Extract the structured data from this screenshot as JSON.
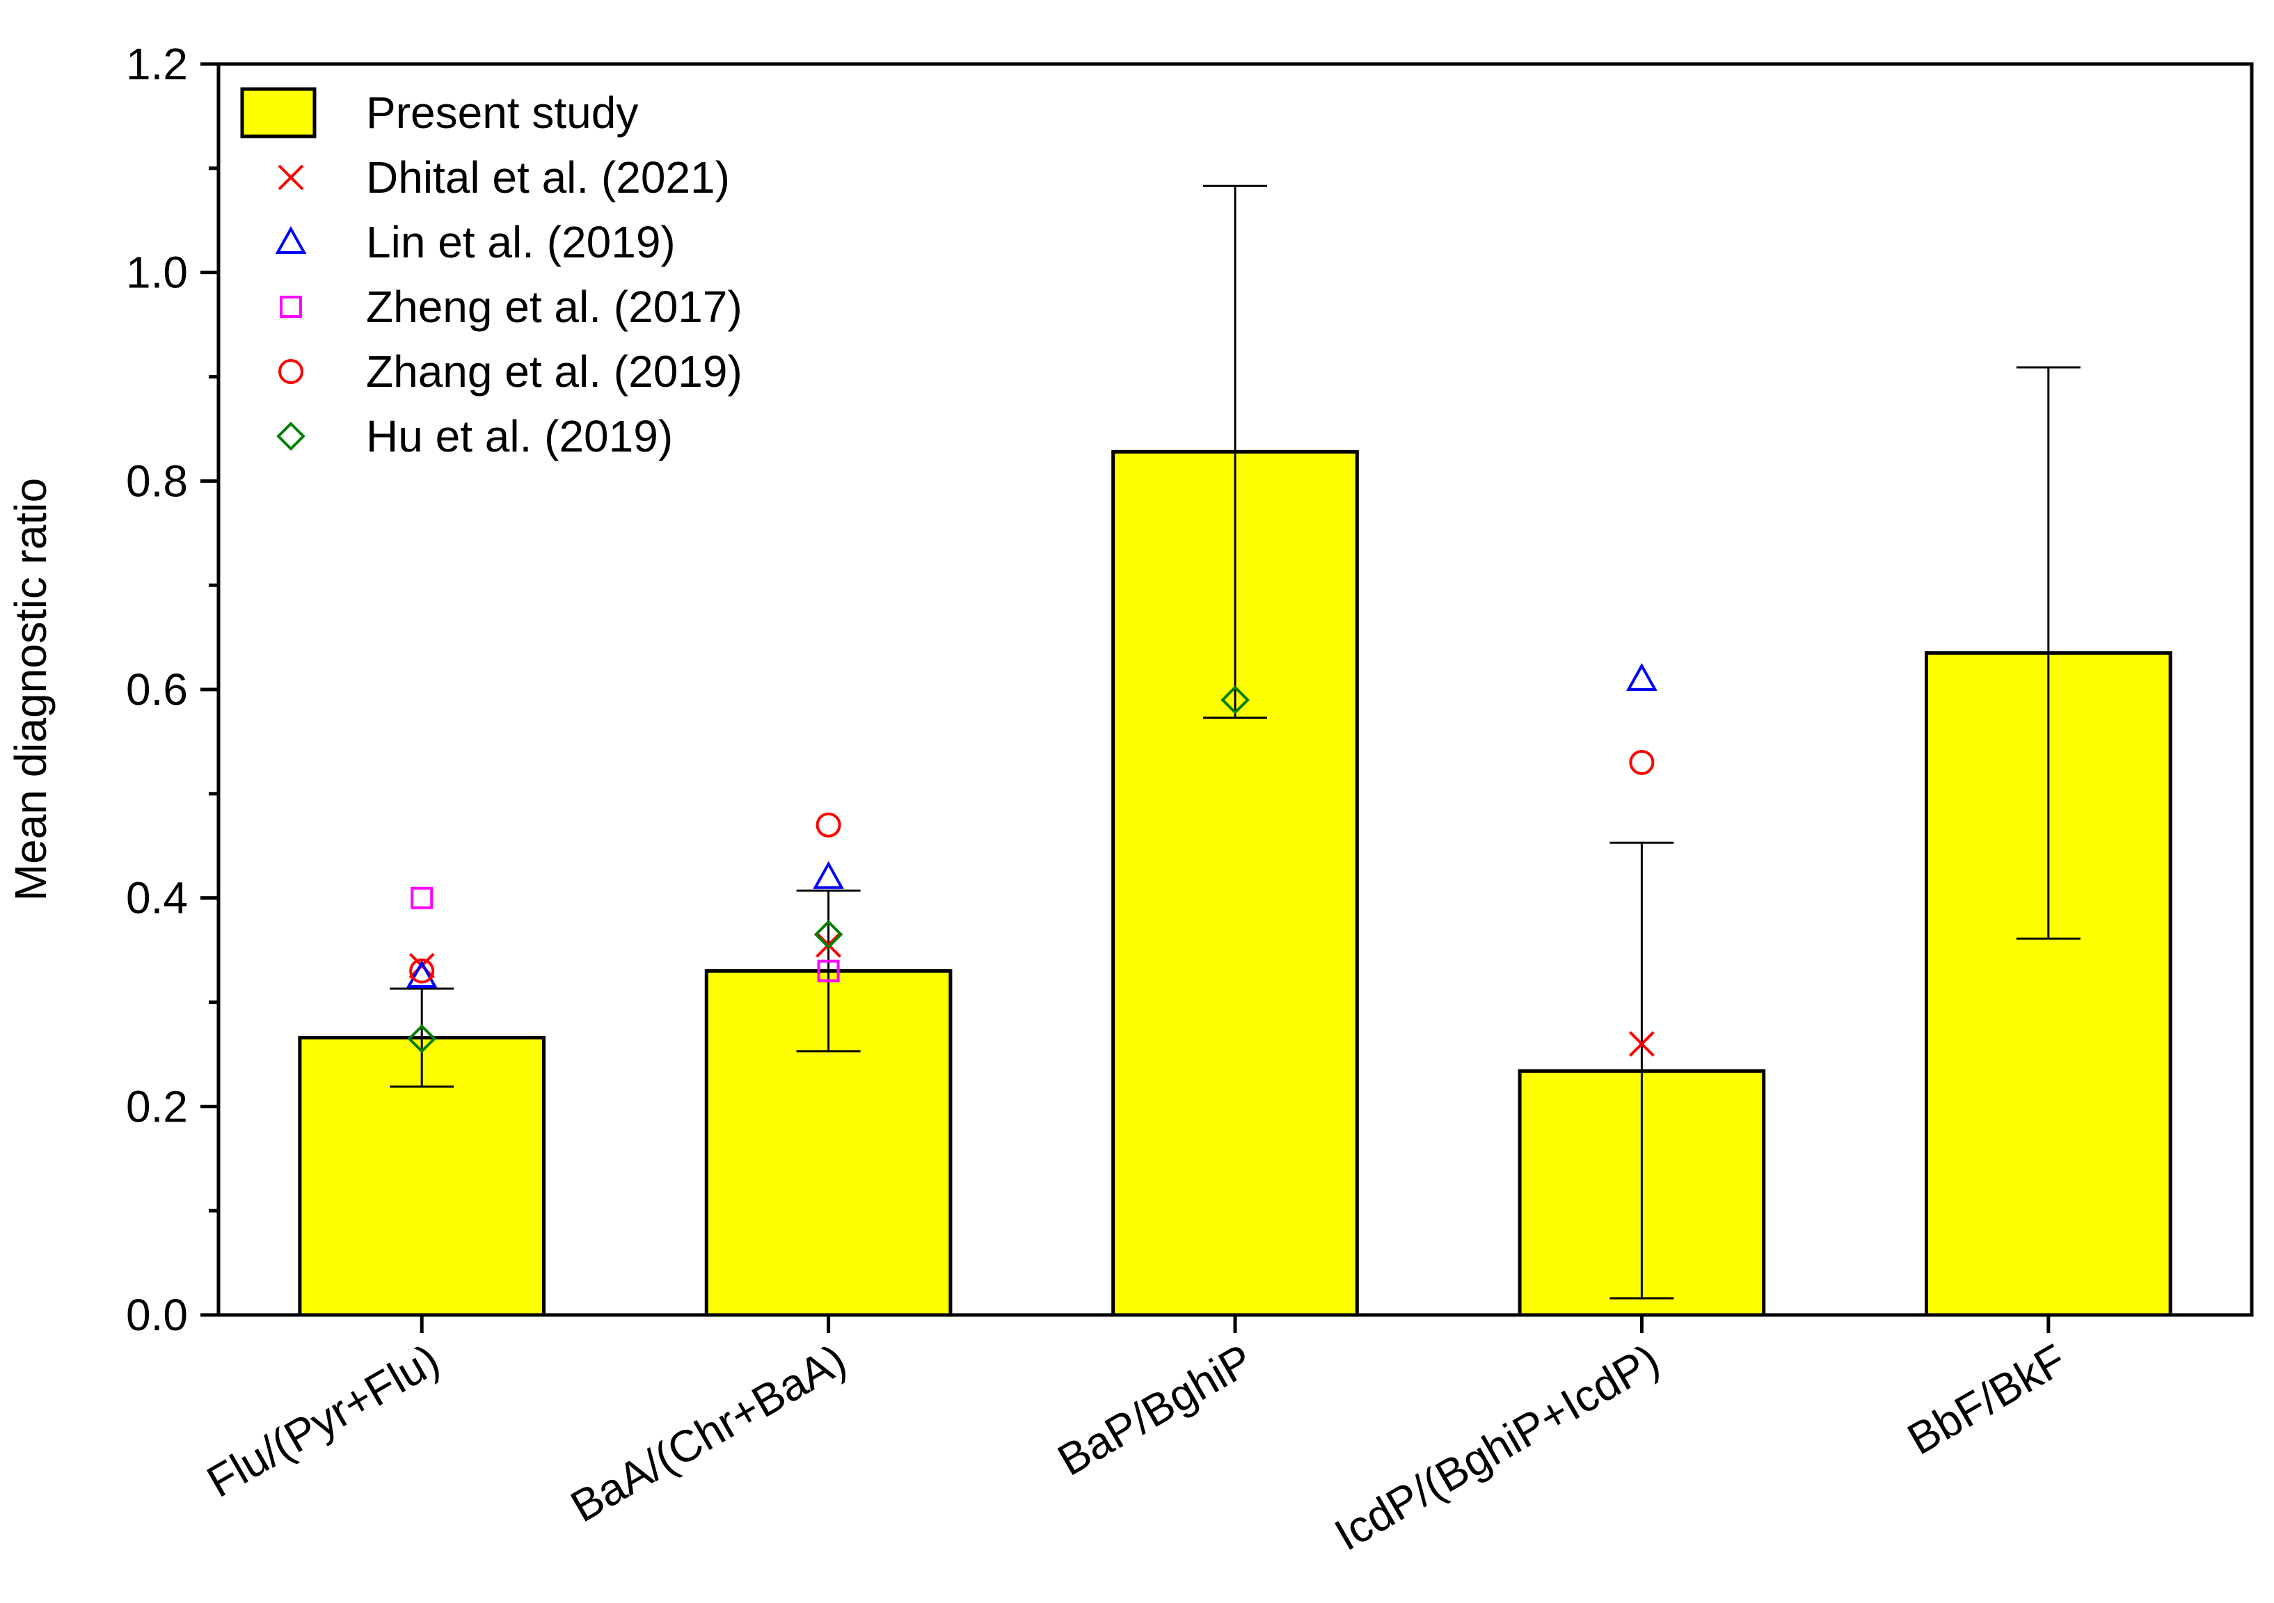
{
  "chart_data": {
    "type": "bar",
    "title": "",
    "xlabel": "",
    "ylabel": "Mean diagnostic ratio",
    "ylim": [
      0,
      1.2
    ],
    "yticks": [
      "0.0",
      "0.2",
      "0.4",
      "0.6",
      "0.8",
      "1.0",
      "1.2"
    ],
    "ytick_values": [
      0,
      0.2,
      0.4,
      0.6,
      0.8,
      1.0,
      1.2
    ],
    "categories": [
      "Flu/(Pyr+Flu)",
      "BaA/(Chr+BaA)",
      "BaP/BghiP",
      "IcdP/(BghiP+IcdP)",
      "BbF/BkF"
    ],
    "bar_series": {
      "name": "Present study",
      "color": "#ffff00",
      "values": [
        0.266,
        0.33,
        0.828,
        0.234,
        0.635
      ],
      "error_low": [
        0.219,
        0.253,
        0.573,
        0.016,
        0.361
      ],
      "error_high": [
        0.313,
        0.407,
        1.083,
        0.453,
        0.909
      ]
    },
    "marker_series": [
      {
        "name": "Dhital et al. (2021)",
        "marker": "x",
        "color": "#ff0000",
        "values": [
          0.335,
          0.355,
          null,
          0.26,
          null
        ]
      },
      {
        "name": "Lin et al. (2019)",
        "marker": "triangle",
        "color": "#0000ff",
        "values": [
          0.325,
          0.42,
          null,
          0.61,
          null
        ]
      },
      {
        "name": "Zheng et al. (2017)",
        "marker": "square",
        "color": "#ff00ff",
        "values": [
          0.4,
          0.33,
          null,
          null,
          null
        ]
      },
      {
        "name": "Zhang et al. (2019)",
        "marker": "circle",
        "color": "#ff0000",
        "values": [
          0.33,
          0.47,
          null,
          0.53,
          null
        ]
      },
      {
        "name": "Hu et al. (2019)",
        "marker": "diamond",
        "color": "#008000",
        "values": [
          0.265,
          0.365,
          0.59,
          null,
          null
        ]
      }
    ],
    "legend_position": "top-left"
  }
}
